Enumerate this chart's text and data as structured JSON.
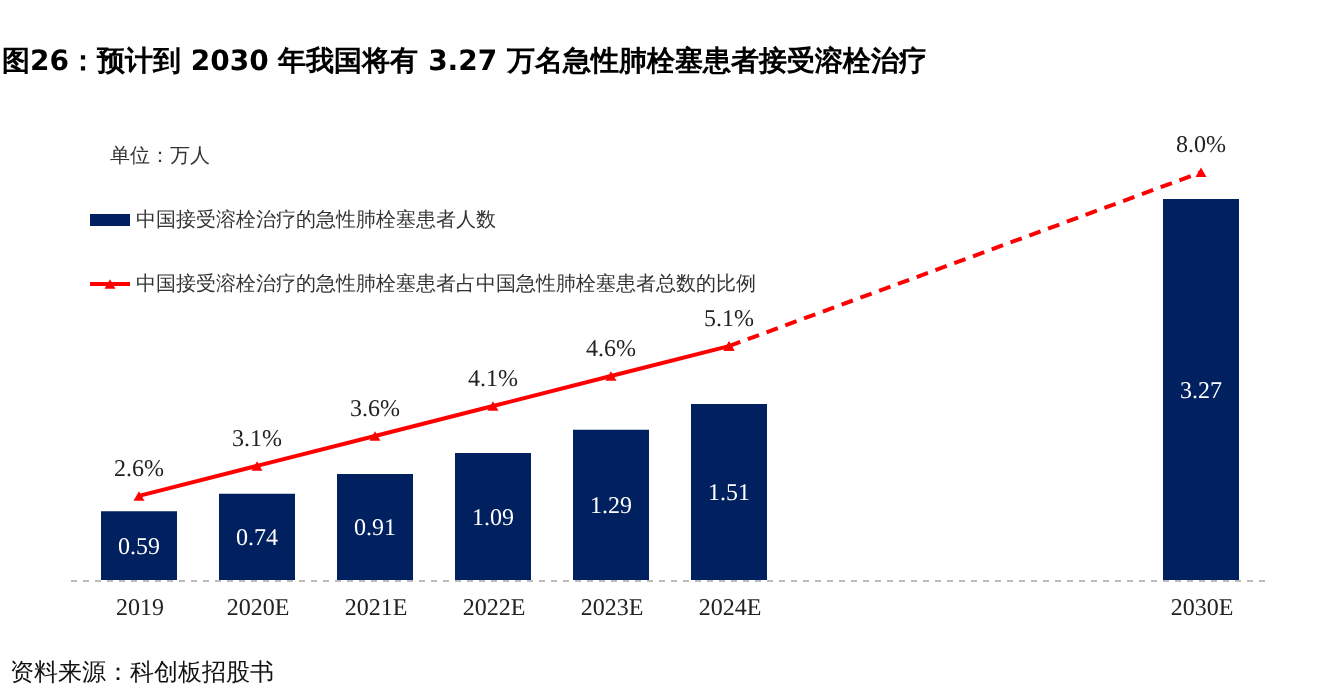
{
  "chart_data": {
    "type": "bar",
    "title": "图26：预计到 2030 年我国将有 3.27 万名急性肺栓塞患者接受溶栓治疗",
    "annotations": [
      "单位：万人",
      "资料来源：科创板招股书"
    ],
    "categories": [
      "2019",
      "2020E",
      "2021E",
      "2022E",
      "2023E",
      "2024E",
      null,
      null,
      null,
      "2030E"
    ],
    "series": [
      {
        "name": "中国接受溶栓治疗的急性肺栓塞患者人数",
        "color": "#002060",
        "values": [
          0.59,
          0.74,
          0.91,
          1.09,
          1.29,
          1.51,
          null,
          null,
          null,
          3.27
        ],
        "value_labels": [
          "0.59",
          "0.74",
          "0.91",
          "1.09",
          "1.29",
          "1.51",
          null,
          null,
          null,
          "3.27"
        ]
      },
      {
        "name": "中国接受溶栓治疗的急性肺栓塞患者占中国急性肺栓塞患者总数的比例",
        "type": "line",
        "axis": "y2",
        "color": "#ff0000",
        "marker": "triangle",
        "line_style": "solid",
        "values": [
          2.6,
          3.1,
          3.6,
          4.1,
          4.6,
          5.1,
          null,
          null,
          null,
          null
        ],
        "value_labels": [
          "2.6%",
          "3.1%",
          "3.6%",
          "4.1%",
          "4.6%",
          "5.1%",
          null,
          null,
          null,
          null
        ]
      },
      {
        "type": "line",
        "axis": "y2",
        "color": "#ff0000",
        "marker": "triangle",
        "line_style": "dashed",
        "values": [
          null,
          null,
          null,
          null,
          null,
          5.1,
          null,
          null,
          null,
          8.0
        ],
        "value_labels": [
          null,
          null,
          null,
          null,
          null,
          null,
          null,
          null,
          null,
          "8.0%"
        ]
      }
    ],
    "legend": "top left",
    "tick_labels": "x"
  }
}
